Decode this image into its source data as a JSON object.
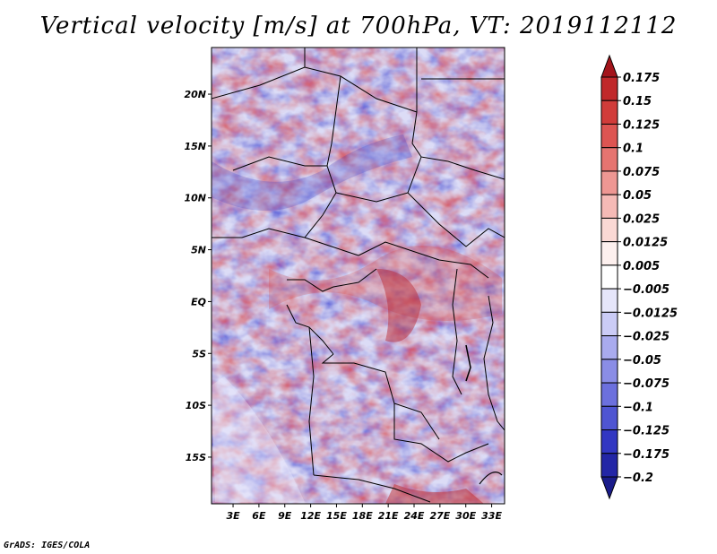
{
  "title": "Vertical velocity [m/s] at 700hPa, VT: 2019112112",
  "credit": "GrADS: IGES/COLA",
  "map": {
    "lat_labels": [
      "20N",
      "15N",
      "10N",
      "5N",
      "EQ",
      "5S",
      "10S",
      "15S"
    ],
    "lat_values": [
      20,
      15,
      10,
      5,
      0,
      -5,
      -10,
      -15
    ],
    "lon_labels": [
      "3E",
      "6E",
      "9E",
      "12E",
      "15E",
      "18E",
      "21E",
      "24E",
      "27E",
      "30E",
      "33E"
    ],
    "lon_values": [
      3,
      6,
      9,
      12,
      15,
      18,
      21,
      24,
      27,
      30,
      33
    ],
    "lon_range": [
      0.5,
      34.5
    ],
    "lat_range": [
      -19.5,
      24.5
    ]
  },
  "colorbar": {
    "labels": [
      "0.175",
      "0.15",
      "0.125",
      "0.1",
      "0.075",
      "0.05",
      "0.025",
      "0.0125",
      "0.005",
      "−0.005",
      "−0.0125",
      "−0.025",
      "−0.05",
      "−0.075",
      "−0.1",
      "−0.125",
      "−0.175",
      "−0.2"
    ],
    "colors": [
      "#a3141b",
      "#c0282a",
      "#d13c3a",
      "#dd5552",
      "#e67470",
      "#ee9793",
      "#f5bab6",
      "#fad8d4",
      "#fdf0ee",
      "#ffffff",
      "#e6e6fa",
      "#cbccf6",
      "#a9abee",
      "#8a8de6",
      "#6c70dd",
      "#4f55d2",
      "#3237c2",
      "#2326a6",
      "#1a1c8a"
    ]
  }
}
